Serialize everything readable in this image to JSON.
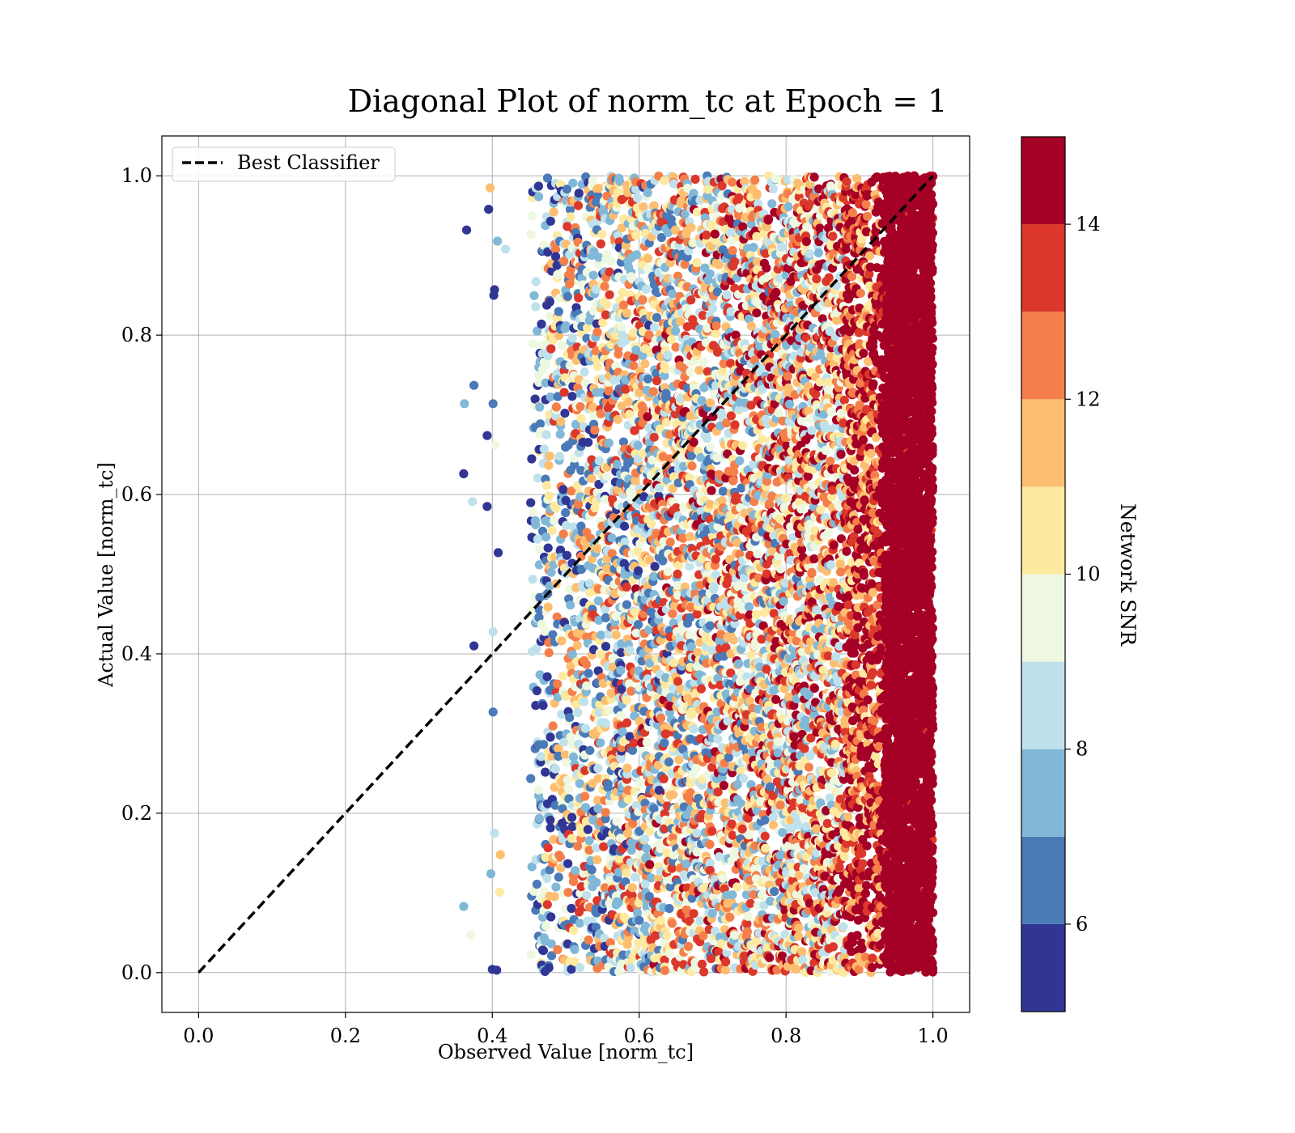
{
  "chart_data": {
    "type": "scatter",
    "title": "Diagonal Plot of norm_tc at Epoch = 1",
    "xlabel": "Observed Value [norm_tc]",
    "ylabel": "Actual Value [norm_tc]",
    "xlim": [
      -0.05,
      1.05
    ],
    "ylim": [
      -0.05,
      1.05
    ],
    "xticks": [
      0.0,
      0.2,
      0.4,
      0.6,
      0.8,
      1.0
    ],
    "xtick_labels": [
      "0.0",
      "0.2",
      "0.4",
      "0.6",
      "0.8",
      "1.0"
    ],
    "yticks": [
      0.0,
      0.2,
      0.4,
      0.6,
      0.8,
      1.0
    ],
    "ytick_labels": [
      "0.0",
      "0.2",
      "0.4",
      "0.6",
      "0.8",
      "1.0"
    ],
    "grid": true,
    "legend": {
      "placement": "upper left",
      "entries": [
        "Best Classifier"
      ]
    },
    "reference_line": {
      "name": "Best Classifier",
      "x": [
        0.0,
        1.0
      ],
      "y": [
        0.0,
        1.0
      ],
      "style": "dashed",
      "color": "#000000"
    },
    "colorbar": {
      "label": "Network SNR",
      "range": [
        5.0,
        15.0
      ],
      "ticks": [
        6,
        8,
        10,
        12,
        14
      ],
      "tick_labels": [
        "6",
        "8",
        "10",
        "12",
        "14"
      ],
      "bins": [
        {
          "from": 5,
          "to": 6,
          "color": "#313695"
        },
        {
          "from": 6,
          "to": 7,
          "color": "#4a7ab7"
        },
        {
          "from": 7,
          "to": 8,
          "color": "#82b8d7"
        },
        {
          "from": 8,
          "to": 9,
          "color": "#bfe1ec"
        },
        {
          "from": 9,
          "to": 10,
          "color": "#eef8e0"
        },
        {
          "from": 10,
          "to": 11,
          "color": "#fde9a0"
        },
        {
          "from": 11,
          "to": 12,
          "color": "#fdbe70"
        },
        {
          "from": 12,
          "to": 13,
          "color": "#f47f4a"
        },
        {
          "from": 13,
          "to": 14,
          "color": "#db382b"
        },
        {
          "from": 14,
          "to": 15,
          "color": "#a50026"
        }
      ]
    },
    "scatter_summary": {
      "x_range": [
        0.36,
        1.0
      ],
      "y_range": [
        0.0,
        1.0
      ],
      "density": "dense band for x in [0.45, 1.0]; sparse points for x in [0.36, 0.45]",
      "color_trend": "SNR increases with observed value; x > 0.9 nearly all SNR >= 14"
    },
    "outlier_points": [
      {
        "x": 0.365,
        "y": 0.932,
        "snr": 5.5
      },
      {
        "x": 0.397,
        "y": 0.985,
        "snr": 11.5
      },
      {
        "x": 0.395,
        "y": 0.958,
        "snr": 5.5
      },
      {
        "x": 0.407,
        "y": 0.918,
        "snr": 7.5
      },
      {
        "x": 0.418,
        "y": 0.908,
        "snr": 8.5
      },
      {
        "x": 0.403,
        "y": 0.857,
        "snr": 5.5
      },
      {
        "x": 0.402,
        "y": 0.85,
        "snr": 5.5
      },
      {
        "x": 0.375,
        "y": 0.737,
        "snr": 6.5
      },
      {
        "x": 0.362,
        "y": 0.714,
        "snr": 7.5
      },
      {
        "x": 0.401,
        "y": 0.714,
        "snr": 6.5
      },
      {
        "x": 0.393,
        "y": 0.674,
        "snr": 5.5
      },
      {
        "x": 0.404,
        "y": 0.662,
        "snr": 9.5
      },
      {
        "x": 0.361,
        "y": 0.626,
        "snr": 5.5
      },
      {
        "x": 0.373,
        "y": 0.591,
        "snr": 8.5
      },
      {
        "x": 0.393,
        "y": 0.585,
        "snr": 5.5
      },
      {
        "x": 0.408,
        "y": 0.527,
        "snr": 5.5
      },
      {
        "x": 0.375,
        "y": 0.41,
        "snr": 5.5
      },
      {
        "x": 0.401,
        "y": 0.428,
        "snr": 8.5
      },
      {
        "x": 0.401,
        "y": 0.327,
        "snr": 6.5
      },
      {
        "x": 0.403,
        "y": 0.175,
        "snr": 8.5
      },
      {
        "x": 0.411,
        "y": 0.148,
        "snr": 11.5
      },
      {
        "x": 0.398,
        "y": 0.124,
        "snr": 7.5
      },
      {
        "x": 0.41,
        "y": 0.101,
        "snr": 10.5
      },
      {
        "x": 0.361,
        "y": 0.083,
        "snr": 7.5
      },
      {
        "x": 0.371,
        "y": 0.047,
        "snr": 9.5
      },
      {
        "x": 0.4,
        "y": 0.004,
        "snr": 5.5
      },
      {
        "x": 0.406,
        "y": 0.003,
        "snr": 5.5
      }
    ]
  }
}
